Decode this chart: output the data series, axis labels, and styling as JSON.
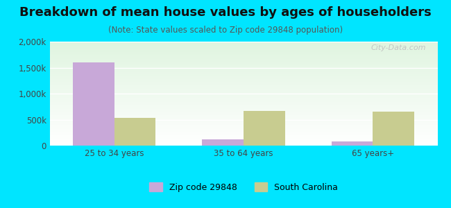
{
  "title": "Breakdown of mean house values by ages of householders",
  "subtitle": "(Note: State values scaled to Zip code 29848 population)",
  "categories": [
    "25 to 34 years",
    "35 to 64 years",
    "65 years+"
  ],
  "zip_values": [
    1600000,
    120000,
    80000
  ],
  "state_values": [
    530000,
    670000,
    650000
  ],
  "zip_color": "#c8a8d8",
  "state_color": "#c8cc90",
  "ylim": [
    0,
    2000000
  ],
  "yticks": [
    0,
    500000,
    1000000,
    1500000,
    2000000
  ],
  "ytick_labels": [
    "0",
    "500k",
    "1,000k",
    "1,500k",
    "2,000k"
  ],
  "bg_outer": "#00e5ff",
  "legend_zip": "Zip code 29848",
  "legend_state": "South Carolina",
  "bar_width": 0.32,
  "title_fontsize": 13,
  "subtitle_fontsize": 8.5,
  "tick_fontsize": 8.5,
  "legend_fontsize": 9,
  "watermark": "City-Data.com"
}
